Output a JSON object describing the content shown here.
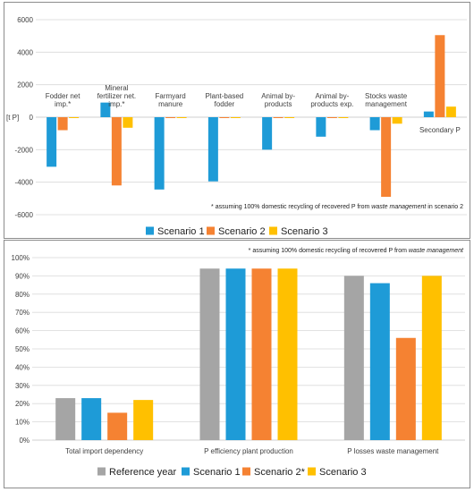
{
  "colors": {
    "reference": "#A5A5A5",
    "scenario1": "#1E9BD7",
    "scenario2": "#F58232",
    "scenario3": "#FFC000",
    "grid": "#D9D9D9",
    "frame": "#8C8C8C"
  },
  "chart_data": [
    {
      "type": "bar",
      "ylabel": "[t P]",
      "ylim": [
        -6000,
        6000
      ],
      "yticks": [
        "6000",
        "4000",
        "2000",
        "0",
        "-2000",
        "-4000",
        "-6000"
      ],
      "categories": [
        [
          "Fodder net",
          "imp.*"
        ],
        [
          "Mineral",
          "fertilizer net.",
          "imp.*"
        ],
        [
          "Farmyard",
          "manure"
        ],
        [
          "Plant-based",
          "fodder"
        ],
        [
          "Animal by-",
          "products"
        ],
        [
          "Animal by-",
          "products exp."
        ],
        [
          "Stocks waste",
          "management"
        ],
        [
          "Secondary P"
        ]
      ],
      "series": [
        {
          "name": "Scenario 1",
          "color": "#1E9BD7",
          "values": [
            -3050,
            900,
            -4450,
            -3950,
            -2000,
            -1200,
            -800,
            350
          ]
        },
        {
          "name": "Scenario 2",
          "color": "#F58232",
          "values": [
            -800,
            -4200,
            0,
            0,
            0,
            0,
            -4900,
            5050
          ]
        },
        {
          "name": "Scenario 3",
          "color": "#FFC000",
          "values": [
            0,
            -650,
            0,
            0,
            0,
            0,
            -400,
            650
          ]
        }
      ],
      "note_parts": [
        "* assuming 100% domestic recycling of recovered P from ",
        "waste management",
        " in scenario 2"
      ],
      "grid": true,
      "legend": "bottom"
    },
    {
      "type": "bar",
      "ylim": [
        0,
        100
      ],
      "yticks": [
        "100%",
        "90%",
        "80%",
        "70%",
        "60%",
        "50%",
        "40%",
        "30%",
        "20%",
        "10%",
        "0%"
      ],
      "categories": [
        "Total import dependency",
        "P efficiency plant production",
        "P losses waste management"
      ],
      "series": [
        {
          "name": "Reference year",
          "color": "#A5A5A5",
          "values": [
            23,
            94,
            90
          ]
        },
        {
          "name": "Scenario 1",
          "color": "#1E9BD7",
          "values": [
            23,
            94,
            86
          ]
        },
        {
          "name": "Scenario 2*",
          "color": "#F58232",
          "values": [
            15,
            94,
            56
          ]
        },
        {
          "name": "Scenario 3",
          "color": "#FFC000",
          "values": [
            22,
            94,
            90
          ]
        }
      ],
      "note_parts": [
        "* assuming 100% domestic recycling of recovered P from ",
        "waste management"
      ],
      "grid": true,
      "legend": "bottom"
    }
  ]
}
